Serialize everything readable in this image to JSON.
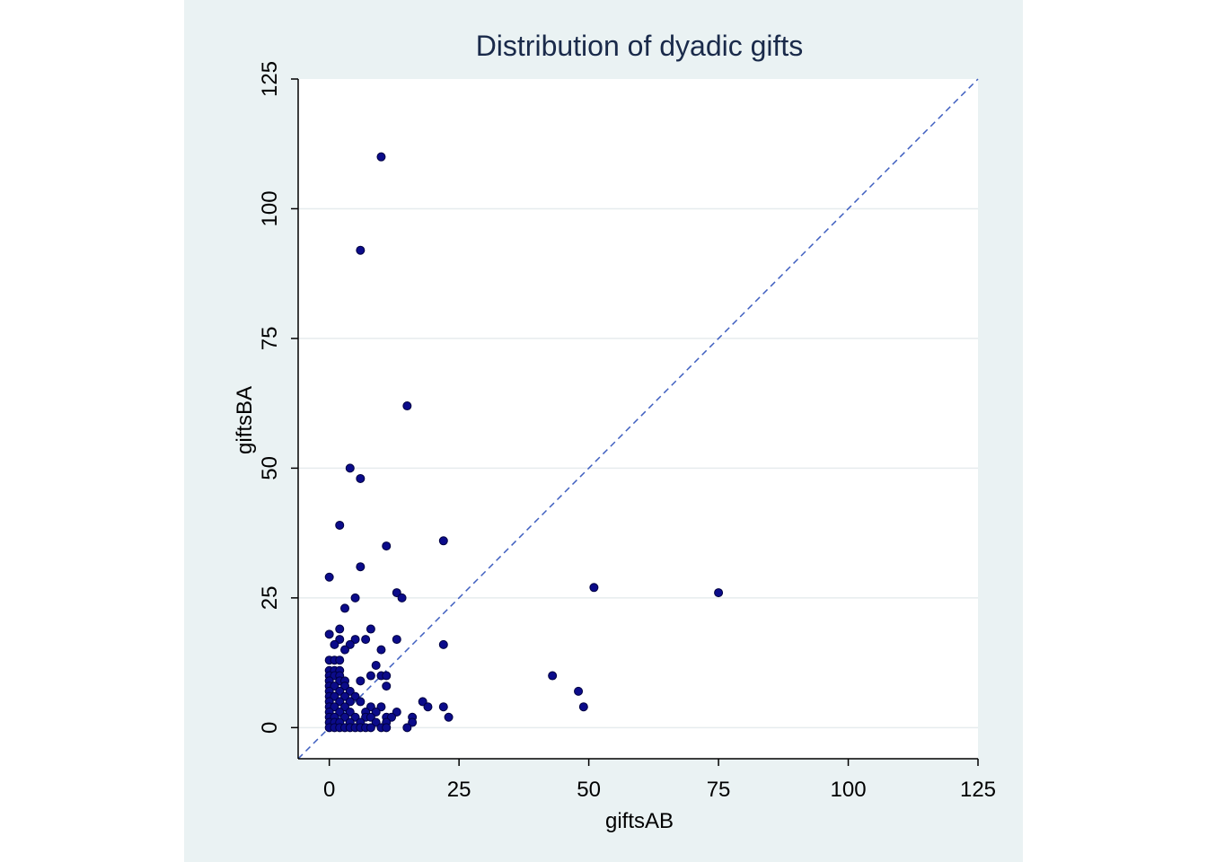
{
  "chart_data": {
    "type": "scatter",
    "title": "Distribution of dyadic gifts",
    "xlabel": "giftsAB",
    "ylabel": "giftsBA",
    "xlim": [
      -6,
      125
    ],
    "ylim": [
      -6,
      125
    ],
    "xticks": [
      0,
      25,
      50,
      75,
      100,
      125
    ],
    "yticks": [
      0,
      25,
      50,
      75,
      100,
      125
    ],
    "grid": "horizontal",
    "reference_line": "y = x (dashed)",
    "colors": {
      "marker": "#0b0b8a",
      "marker_edge": "#000040",
      "reference_line": "#4060c0",
      "grid": "#e6ecee",
      "panel_background": "#eaf2f3"
    },
    "points": [
      [
        10,
        110
      ],
      [
        6,
        92
      ],
      [
        15,
        62
      ],
      [
        4,
        50
      ],
      [
        6,
        48
      ],
      [
        2,
        39
      ],
      [
        11,
        35
      ],
      [
        22,
        36
      ],
      [
        6,
        31
      ],
      [
        0,
        29
      ],
      [
        13,
        26
      ],
      [
        14,
        25
      ],
      [
        5,
        25
      ],
      [
        3,
        23
      ],
      [
        51,
        27
      ],
      [
        75,
        26
      ],
      [
        2,
        19
      ],
      [
        8,
        19
      ],
      [
        0,
        18
      ],
      [
        2,
        17
      ],
      [
        5,
        17
      ],
      [
        7,
        17
      ],
      [
        13,
        17
      ],
      [
        1,
        16
      ],
      [
        4,
        16
      ],
      [
        22,
        16
      ],
      [
        3,
        15
      ],
      [
        10,
        15
      ],
      [
        0,
        13
      ],
      [
        1,
        13
      ],
      [
        2,
        13
      ],
      [
        9,
        12
      ],
      [
        0,
        11
      ],
      [
        1,
        11
      ],
      [
        2,
        11
      ],
      [
        0,
        10
      ],
      [
        1,
        10
      ],
      [
        2,
        10
      ],
      [
        8,
        10
      ],
      [
        10,
        10
      ],
      [
        11,
        10
      ],
      [
        43,
        10
      ],
      [
        0,
        9
      ],
      [
        2,
        9
      ],
      [
        3,
        9
      ],
      [
        6,
        9
      ],
      [
        0,
        8
      ],
      [
        1,
        8
      ],
      [
        3,
        8
      ],
      [
        11,
        8
      ],
      [
        0,
        7
      ],
      [
        2,
        7
      ],
      [
        4,
        7
      ],
      [
        48,
        7
      ],
      [
        0,
        6
      ],
      [
        1,
        6
      ],
      [
        3,
        6
      ],
      [
        5,
        6
      ],
      [
        0,
        5
      ],
      [
        2,
        5
      ],
      [
        4,
        5
      ],
      [
        6,
        5
      ],
      [
        18,
        5
      ],
      [
        0,
        4
      ],
      [
        1,
        4
      ],
      [
        3,
        4
      ],
      [
        8,
        4
      ],
      [
        10,
        4
      ],
      [
        19,
        4
      ],
      [
        22,
        4
      ],
      [
        49,
        4
      ],
      [
        0,
        3
      ],
      [
        2,
        3
      ],
      [
        4,
        3
      ],
      [
        7,
        3
      ],
      [
        9,
        3
      ],
      [
        13,
        3
      ],
      [
        0,
        2
      ],
      [
        1,
        2
      ],
      [
        3,
        2
      ],
      [
        5,
        2
      ],
      [
        7,
        2
      ],
      [
        8,
        2
      ],
      [
        11,
        2
      ],
      [
        12,
        2
      ],
      [
        16,
        2
      ],
      [
        23,
        2
      ],
      [
        0,
        1
      ],
      [
        1,
        1
      ],
      [
        2,
        1
      ],
      [
        4,
        1
      ],
      [
        6,
        1
      ],
      [
        9,
        1
      ],
      [
        11,
        1
      ],
      [
        16,
        1
      ],
      [
        0,
        0
      ],
      [
        1,
        0
      ],
      [
        2,
        0
      ],
      [
        3,
        0
      ],
      [
        4,
        0
      ],
      [
        5,
        0
      ],
      [
        6,
        0
      ],
      [
        7,
        0
      ],
      [
        8,
        0
      ],
      [
        10,
        0
      ],
      [
        11,
        0
      ],
      [
        15,
        0
      ]
    ]
  }
}
